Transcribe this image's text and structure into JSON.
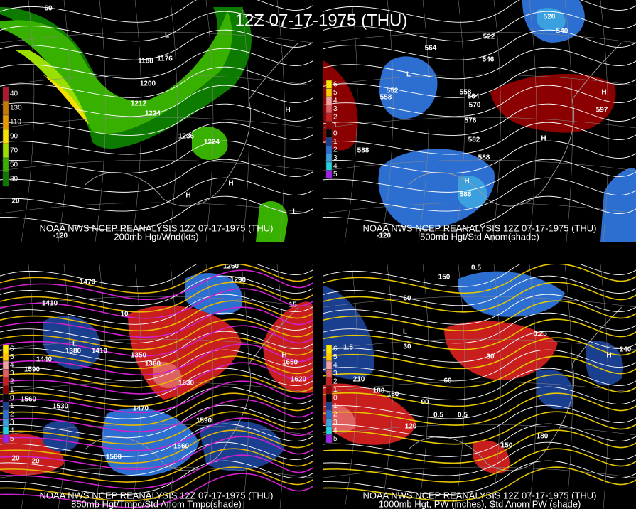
{
  "title": "12Z 07-17-1975 (THU)",
  "panels": [
    {
      "caption_1": "NOAA NWS NCEP REANALYSIS 12Z 07-17-1975 (THU)",
      "caption_2": "200mb Hgt/Wnd(kts)",
      "legend": [
        40,
        130,
        110,
        90,
        70,
        50,
        30
      ],
      "labels": [
        "60",
        "1188",
        "1176",
        "1200",
        "1212",
        "1224",
        "1236",
        "1224",
        "H",
        "H",
        "H",
        "L",
        "L",
        "20",
        "-120"
      ]
    },
    {
      "caption_1": "NOAA NWS NCEP REANALYSIS 12Z 07-17-1975 (THU)",
      "caption_2": "500mb Hgt/Std Anom(shade)",
      "legend": [
        6,
        5,
        4,
        3,
        2,
        1,
        0,
        1,
        2,
        3,
        4,
        5
      ],
      "labels": [
        "L",
        "552",
        "558",
        "564",
        "546",
        "522",
        "528",
        "540",
        "558",
        "564",
        "570",
        "576",
        "582",
        "588",
        "588",
        "H",
        "597",
        "H",
        "586",
        "H",
        "-120"
      ]
    },
    {
      "caption_1": "NOAA NWS NCEP REANALYSIS 12Z 07-17-1975 (THU)",
      "caption_2": "850mb Hgt/Tmpc/Std Anom Tmpc(shade)",
      "legend": [
        6,
        5,
        4,
        3,
        2,
        1,
        0,
        1,
        2,
        3,
        4,
        5
      ],
      "labels": [
        "1470",
        "1410",
        "L",
        "1380",
        "1410",
        "1440",
        "1590",
        "1560",
        "1530",
        "1350",
        "1380",
        "1530",
        "1470",
        "1590",
        "1560",
        "1500",
        "H",
        "1650",
        "1620",
        "1260",
        "1290",
        "20",
        "20",
        "10",
        "15"
      ]
    },
    {
      "caption_1": "NOAA NWS NCEP REANALYSIS 12Z 07-17-1975 (THU)",
      "caption_2": "1000mb Hgt, PW (inches), Std Anom PW (shade)",
      "legend": [
        6,
        5,
        4,
        3,
        2,
        1,
        0,
        1,
        2,
        3,
        4,
        5
      ],
      "labels": [
        "150",
        "60",
        "L",
        "30",
        "240",
        "H",
        "210",
        "180",
        "150",
        "90",
        "120",
        "0.5",
        "0.5",
        "1.5",
        "60",
        "30",
        "180",
        "150",
        "0.5",
        "0.25"
      ]
    }
  ]
}
